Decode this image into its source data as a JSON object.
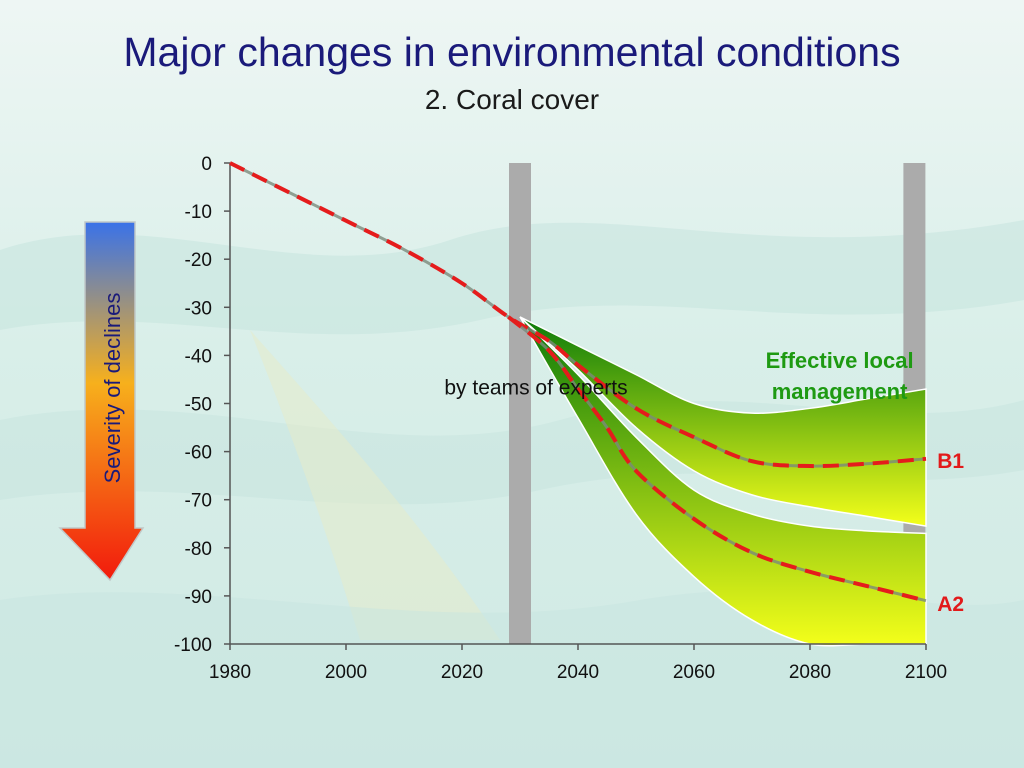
{
  "title": "Major changes in environmental conditions",
  "subtitle": "2. Coral cover",
  "severity_label": "Severity of declines",
  "colors": {
    "title": "#1a1a7a",
    "dashed_line": "#e51c1c",
    "band_dark": "#0a7a0a",
    "band_light": "#f4ff1a",
    "marker_bars": "#ababab",
    "management_text": "#1e9a12",
    "scenario_labels": "#e21a1a"
  },
  "chart_data": {
    "type": "line",
    "title": "2. Coral cover",
    "xlabel": "",
    "ylabel": "",
    "xlim": [
      1980,
      2100
    ],
    "ylim": [
      -100,
      0
    ],
    "x_ticks": [
      1980,
      2000,
      2020,
      2040,
      2060,
      2080,
      2100
    ],
    "y_ticks": [
      0,
      -10,
      -20,
      -30,
      -40,
      -50,
      -60,
      -70,
      -80,
      -90,
      -100
    ],
    "vertical_markers": [
      2030,
      2098
    ],
    "series": [
      {
        "name": "B1",
        "style": "dashed",
        "x": [
          1980,
          1990,
          2000,
          2010,
          2020,
          2028,
          2035,
          2040,
          2050,
          2060,
          2070,
          2080,
          2090,
          2100
        ],
        "values": [
          0,
          -6,
          -12,
          -18,
          -25,
          -32,
          -37,
          -42,
          -51,
          -57,
          -62,
          -63,
          -62.5,
          -61.5
        ]
      },
      {
        "name": "A2",
        "style": "dashed",
        "x": [
          2028,
          2035,
          2040,
          2045,
          2050,
          2060,
          2070,
          2080,
          2090,
          2100
        ],
        "values": [
          -32,
          -39,
          -47,
          -55,
          -64,
          -74,
          -81,
          -85,
          -88,
          -91
        ]
      }
    ],
    "bands": [
      {
        "name": "B1",
        "x": [
          2030,
          2040,
          2050,
          2060,
          2070,
          2080,
          2090,
          2100
        ],
        "upper": [
          -32,
          -38,
          -44,
          -50,
          -52,
          -51,
          -49,
          -47
        ],
        "lower": [
          -32,
          -43,
          -55,
          -64,
          -69,
          -71.5,
          -73.5,
          -75.5
        ]
      },
      {
        "name": "A2",
        "x": [
          2030,
          2040,
          2050,
          2060,
          2070,
          2080,
          2090,
          2100
        ],
        "upper": [
          -32,
          -44,
          -57,
          -68,
          -73,
          -75.5,
          -76.5,
          -77
        ],
        "lower": [
          -32,
          -53,
          -73,
          -86,
          -95,
          -100,
          -100,
          -100
        ]
      }
    ],
    "annotations": [
      {
        "text": "by teams of experts",
        "x": 2025,
        "y": -46
      },
      {
        "lines": [
          "Effective local",
          "management"
        ],
        "x": 2082,
        "y": -41
      },
      {
        "text": "B1",
        "x": 2104,
        "y": -62
      },
      {
        "text": "A2",
        "x": 2104,
        "y": -91.5
      }
    ]
  }
}
